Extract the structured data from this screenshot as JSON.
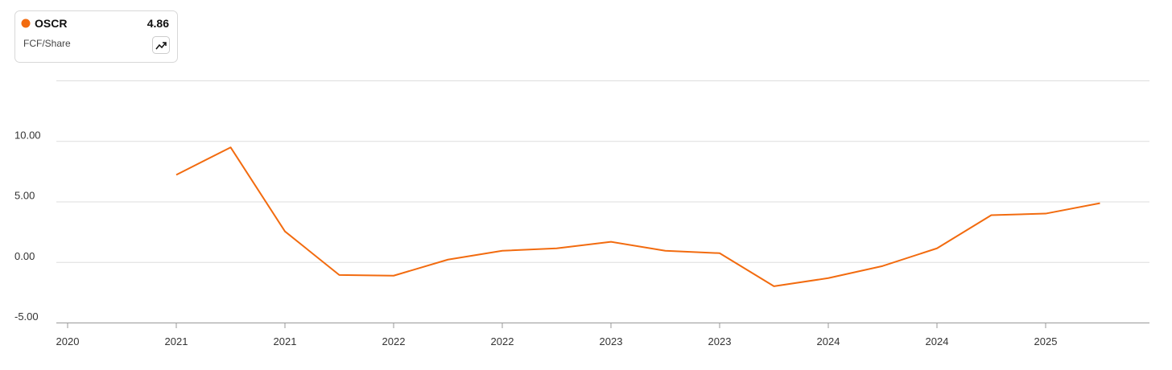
{
  "chart_data": {
    "type": "line",
    "categories": [
      "2020",
      null,
      "2021",
      null,
      "2021",
      null,
      "2022",
      null,
      "2022",
      null,
      "2023",
      null,
      "2023",
      null,
      "2024",
      null,
      "2024",
      null,
      "2025",
      null
    ],
    "series": [
      {
        "name": "OSCR",
        "color": "#f26b0f",
        "metric": "FCF/Share",
        "legend_value": 4.86,
        "values": [
          null,
          null,
          7.2,
          9.47,
          2.53,
          -1.07,
          -1.13,
          0.2,
          0.93,
          1.13,
          1.67,
          0.93,
          0.73,
          -2.0,
          -1.33,
          -0.33,
          1.13,
          3.87,
          4.0,
          4.86
        ]
      }
    ],
    "ylim": [
      -5,
      15
    ],
    "yticks": [
      {
        "value": -5,
        "label": "-5.00"
      },
      {
        "value": 0,
        "label": "0.00"
      },
      {
        "value": 5,
        "label": "5.00"
      },
      {
        "value": 10,
        "label": "10.00"
      }
    ],
    "grid": true
  }
}
